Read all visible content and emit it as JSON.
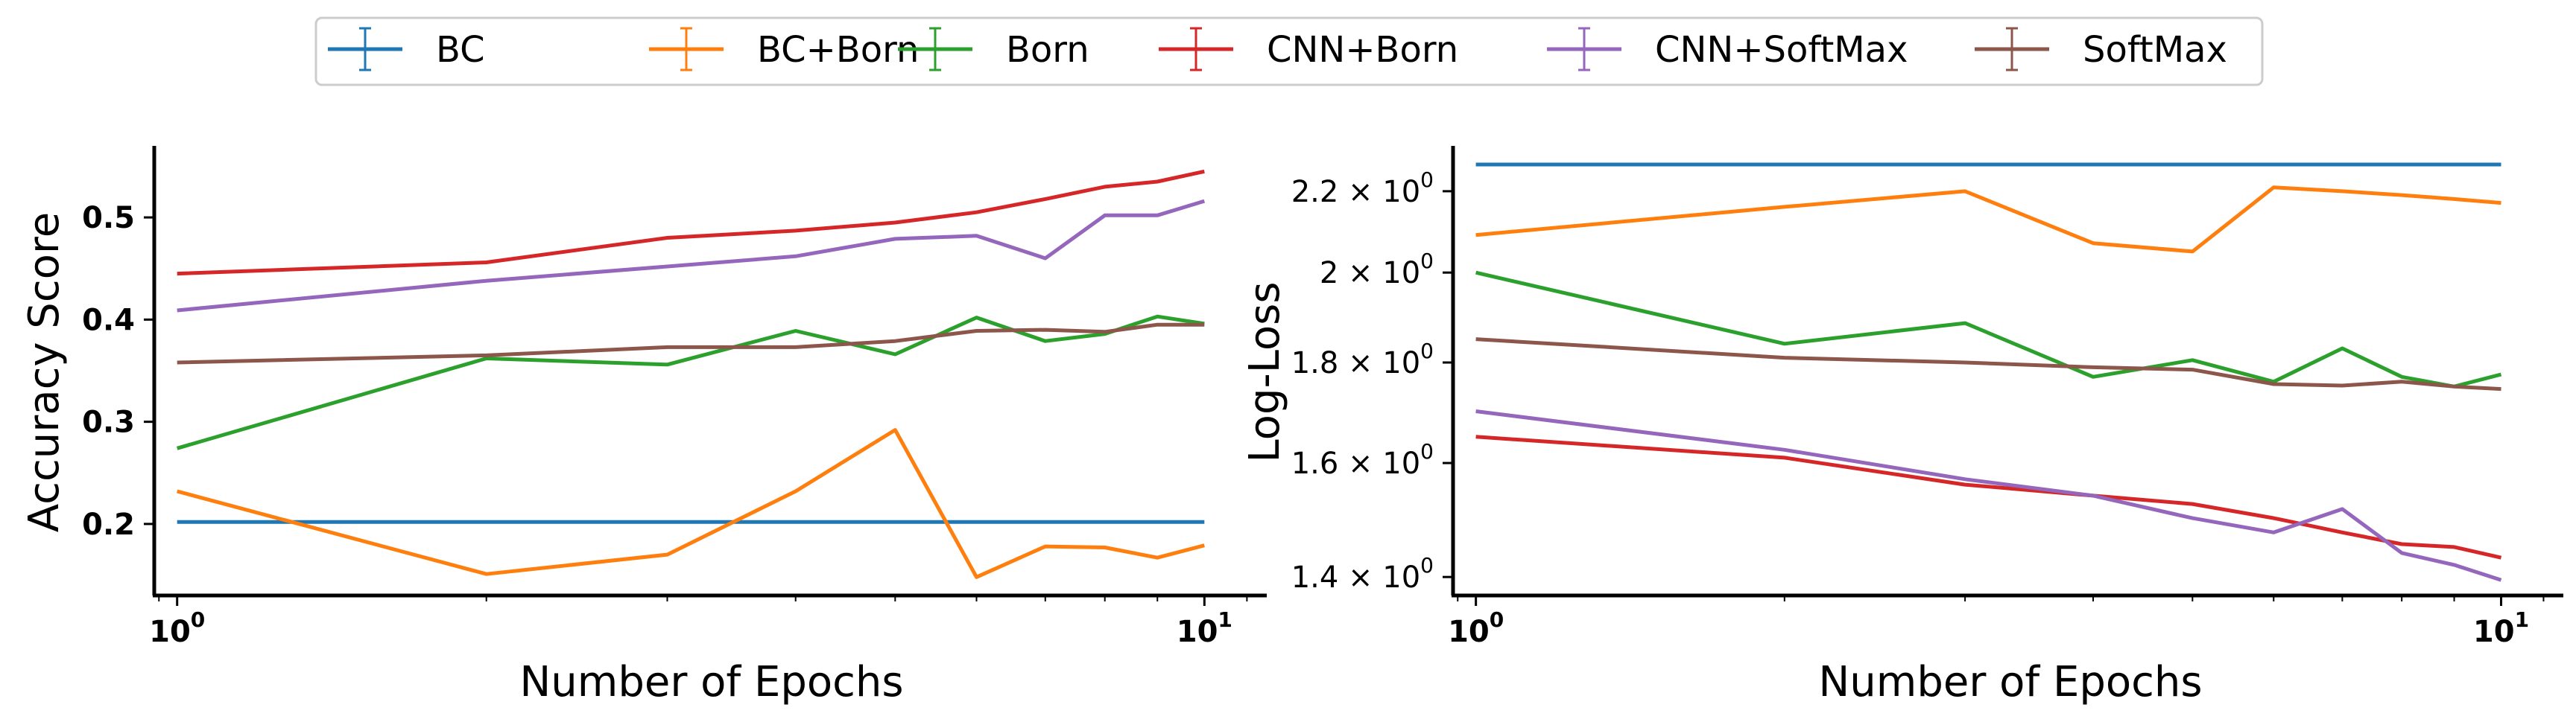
{
  "legend": {
    "entries": [
      {
        "name": "BC",
        "color": "#1f77b4"
      },
      {
        "name": "BC+Born",
        "color": "#ff7f0e"
      },
      {
        "name": "Born",
        "color": "#2ca02c"
      },
      {
        "name": "CNN+Born",
        "color": "#d62728"
      },
      {
        "name": "CNN+SoftMax",
        "color": "#9467bd"
      },
      {
        "name": "SoftMax",
        "color": "#8c564b"
      }
    ]
  },
  "chart_data": [
    {
      "type": "line",
      "xlabel": "Number of Epochs",
      "ylabel": "Accuracy Score",
      "xscale": "log",
      "yscale": "linear",
      "xlim": [
        0.95,
        11.5
      ],
      "ylim": [
        0.13,
        0.57
      ],
      "xticks": [
        {
          "base": "10",
          "exp": "0",
          "value": 1
        },
        {
          "base": "10",
          "exp": "1",
          "value": 10
        }
      ],
      "yticks": [
        {
          "label": "0.2",
          "value": 0.2
        },
        {
          "label": "0.3",
          "value": 0.3
        },
        {
          "label": "0.4",
          "value": 0.4
        },
        {
          "label": "0.5",
          "value": 0.5
        }
      ],
      "x": [
        1,
        2,
        3,
        4,
        5,
        6,
        7,
        8,
        9,
        10
      ],
      "series": [
        {
          "name": "BC",
          "color": "#1f77b4",
          "values": [
            0.202,
            0.202,
            0.202,
            0.202,
            0.202,
            0.202,
            0.202,
            0.202,
            0.202,
            0.202
          ]
        },
        {
          "name": "BC+Born",
          "color": "#ff7f0e",
          "values": [
            0.232,
            0.151,
            0.17,
            0.232,
            0.292,
            0.148,
            0.178,
            0.177,
            0.167,
            0.179
          ]
        },
        {
          "name": "Born",
          "color": "#2ca02c",
          "values": [
            0.274,
            0.362,
            0.356,
            0.389,
            0.366,
            0.402,
            0.379,
            0.386,
            0.403,
            0.396
          ]
        },
        {
          "name": "CNN+Born",
          "color": "#d62728",
          "values": [
            0.445,
            0.456,
            0.48,
            0.487,
            0.495,
            0.505,
            0.518,
            0.53,
            0.535,
            0.545
          ]
        },
        {
          "name": "CNN+SoftMax",
          "color": "#9467bd",
          "values": [
            0.409,
            0.438,
            0.452,
            0.462,
            0.479,
            0.482,
            0.46,
            0.502,
            0.502,
            0.516
          ]
        },
        {
          "name": "SoftMax",
          "color": "#8c564b",
          "values": [
            0.358,
            0.365,
            0.373,
            0.373,
            0.379,
            0.389,
            0.39,
            0.388,
            0.395,
            0.395
          ]
        }
      ],
      "grid": false,
      "legend": "top"
    },
    {
      "type": "line",
      "xlabel": "Number of Epochs",
      "ylabel": "Log-Loss",
      "xscale": "log",
      "yscale": "log",
      "xlim": [
        0.95,
        11.5
      ],
      "ylim": [
        1.37,
        2.32
      ],
      "xticks": [
        {
          "base": "10",
          "exp": "0",
          "value": 1
        },
        {
          "base": "10",
          "exp": "1",
          "value": 10
        }
      ],
      "yticks": [
        {
          "mantissa": "1.4",
          "base": "10",
          "exp": "0",
          "value": 1.4
        },
        {
          "mantissa": "1.6",
          "base": "10",
          "exp": "0",
          "value": 1.6
        },
        {
          "mantissa": "1.8",
          "base": "10",
          "exp": "0",
          "value": 1.8
        },
        {
          "mantissa": "2",
          "base": "10",
          "exp": "0",
          "value": 2.0
        },
        {
          "mantissa": "2.2",
          "base": "10",
          "exp": "0",
          "value": 2.2
        }
      ],
      "x": [
        1,
        2,
        3,
        4,
        5,
        6,
        7,
        8,
        9,
        10
      ],
      "series": [
        {
          "name": "BC",
          "color": "#1f77b4",
          "values": [
            2.27,
            2.27,
            2.27,
            2.27,
            2.27,
            2.27,
            2.27,
            2.27,
            2.27,
            2.27
          ]
        },
        {
          "name": "BC+Born",
          "color": "#ff7f0e",
          "values": [
            2.09,
            2.16,
            2.2,
            2.07,
            2.05,
            2.21,
            2.2,
            2.19,
            2.18,
            2.17
          ]
        },
        {
          "name": "Born",
          "color": "#2ca02c",
          "values": [
            2.0,
            1.84,
            1.885,
            1.77,
            1.805,
            1.76,
            1.83,
            1.77,
            1.75,
            1.775
          ]
        },
        {
          "name": "CNN+Born",
          "color": "#d62728",
          "values": [
            1.65,
            1.61,
            1.56,
            1.54,
            1.525,
            1.5,
            1.475,
            1.455,
            1.45,
            1.432
          ]
        },
        {
          "name": "CNN+SoftMax",
          "color": "#9467bd",
          "values": [
            1.7,
            1.625,
            1.57,
            1.54,
            1.5,
            1.475,
            1.516,
            1.44,
            1.42,
            1.395
          ]
        },
        {
          "name": "SoftMax",
          "color": "#8c564b",
          "values": [
            1.85,
            1.81,
            1.8,
            1.79,
            1.785,
            1.755,
            1.752,
            1.76,
            1.75,
            1.745
          ]
        }
      ],
      "grid": false,
      "legend": "top"
    }
  ]
}
